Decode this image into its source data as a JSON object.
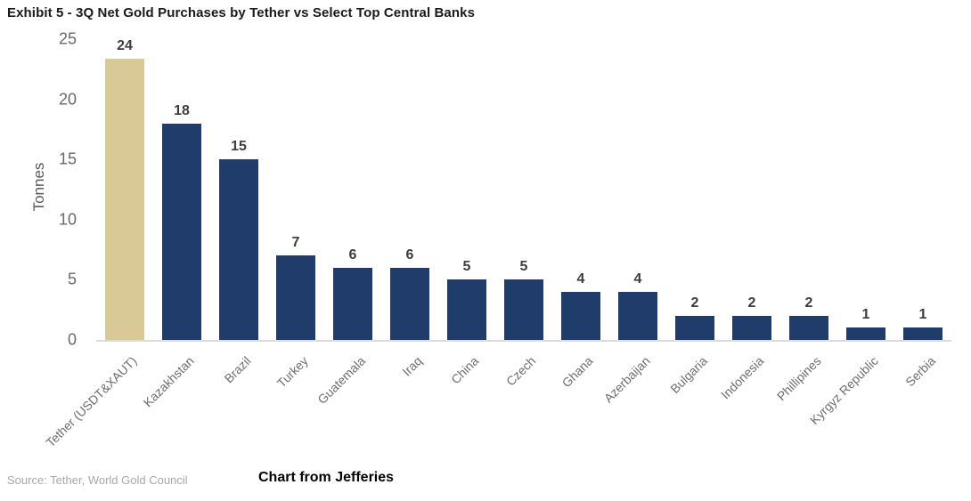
{
  "title": "Exhibit 5 - 3Q Net Gold Purchases by Tether vs Select Top Central Banks",
  "chart_data": {
    "type": "bar",
    "title": "Exhibit 5 - 3Q Net Gold Purchases by Tether vs Select Top Central Banks",
    "xlabel": "",
    "ylabel": "Tonnes",
    "ylim": [
      0,
      25
    ],
    "yticks": [
      0,
      5,
      10,
      15,
      20,
      25
    ],
    "grid": false,
    "legend": "none",
    "categories": [
      "Tether (USDT&XAUT)",
      "Kazakhstan",
      "Brazil",
      "Turkey",
      "Guatemala",
      "Iraq",
      "China",
      "Czech",
      "Ghana",
      "Azerbaijan",
      "Bulgaria",
      "Indonesia",
      "Phillipines",
      "Kyrgyz Republic",
      "Serbia"
    ],
    "values": [
      24,
      18,
      15,
      7,
      6,
      6,
      5,
      5,
      4,
      4,
      2,
      2,
      2,
      1,
      1
    ],
    "highlight_index": 0,
    "colors": {
      "highlight_bar": "#d9c997",
      "default_bar": "#1f3c6a",
      "axis_line": "#dcdcdc"
    }
  },
  "footer": {
    "source": "Source: Tether, World Gold Council",
    "attribution": "Chart from Jefferies"
  }
}
